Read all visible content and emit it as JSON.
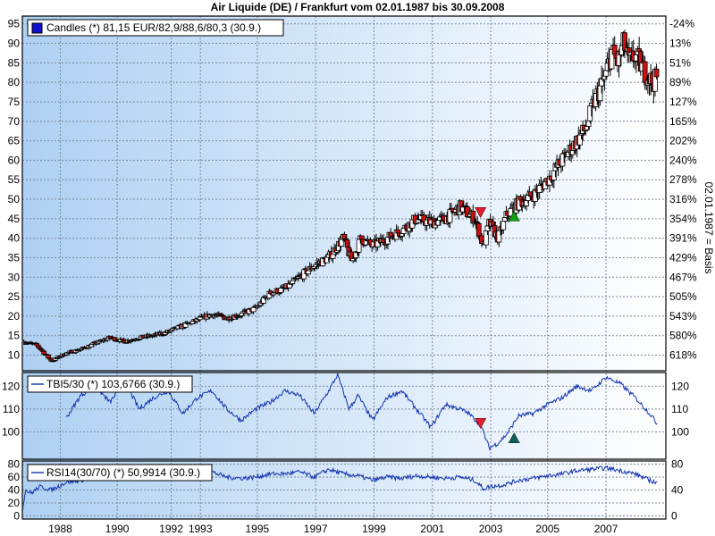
{
  "chart_data": {
    "title": "Air Liquide (DE) / Frankfurt vom 02.01.1987  bis 30.09.2008",
    "type": "candlestick",
    "x_ticks": [
      "1988",
      "1990",
      "1992",
      "1993",
      "1995",
      "1997",
      "1999",
      "2001",
      "2003",
      "2005",
      "2007"
    ],
    "colors": {
      "up": "#ffffff",
      "down": "#d01010",
      "line": "#1030b0",
      "buy": "#10a010",
      "sell": "#e02030"
    },
    "panels": [
      {
        "id": "price",
        "legend": "Candles (*) 81,15 EUR/82,9/88,6/80,3 (30.9.)",
        "ylim": [
          6,
          97
        ],
        "y_ticks_left": [
          10,
          15,
          20,
          25,
          30,
          35,
          40,
          45,
          50,
          55,
          60,
          65,
          70,
          75,
          80,
          85,
          90,
          95
        ],
        "y_ticks_right": [
          "618%",
          "580%",
          "543%",
          "505%",
          "467%",
          "429%",
          "391%",
          "354%",
          "316%",
          "278%",
          "240%",
          "202%",
          "165%",
          "127%",
          "89%",
          "51%",
          "13%",
          "-24%"
        ],
        "right_axis_label": "02.01.1987 = Basis",
        "anchors": [
          [
            1987.0,
            13.5
          ],
          [
            1987.5,
            12.5
          ],
          [
            1988.0,
            8.5
          ],
          [
            1988.5,
            10.5
          ],
          [
            1989.0,
            11.5
          ],
          [
            1989.5,
            13
          ],
          [
            1990.0,
            14.5
          ],
          [
            1990.5,
            13.5
          ],
          [
            1991.0,
            14.5
          ],
          [
            1991.5,
            15
          ],
          [
            1992.0,
            16
          ],
          [
            1992.5,
            17.5
          ],
          [
            1993.0,
            19
          ],
          [
            1993.5,
            20.5
          ],
          [
            1994.0,
            19.5
          ],
          [
            1994.5,
            20.5
          ],
          [
            1995.0,
            22
          ],
          [
            1995.5,
            26
          ],
          [
            1996.0,
            27
          ],
          [
            1996.5,
            30
          ],
          [
            1997.0,
            33
          ],
          [
            1997.5,
            35
          ],
          [
            1998.0,
            40
          ],
          [
            1998.3,
            34
          ],
          [
            1998.6,
            40
          ],
          [
            1999.0,
            38
          ],
          [
            1999.5,
            40
          ],
          [
            2000.0,
            42
          ],
          [
            2000.5,
            45
          ],
          [
            2001.0,
            44
          ],
          [
            2001.5,
            45
          ],
          [
            2002.0,
            48
          ],
          [
            2002.5,
            45
          ],
          [
            2002.8,
            38
          ],
          [
            2003.0,
            44
          ],
          [
            2003.3,
            40
          ],
          [
            2003.6,
            46
          ],
          [
            2004.0,
            49
          ],
          [
            2004.5,
            51
          ],
          [
            2005.0,
            55
          ],
          [
            2005.5,
            60
          ],
          [
            2006.0,
            65
          ],
          [
            2006.3,
            68
          ],
          [
            2006.6,
            75
          ],
          [
            2007.0,
            82
          ],
          [
            2007.2,
            88
          ],
          [
            2007.4,
            85
          ],
          [
            2007.6,
            90
          ],
          [
            2007.8,
            85
          ],
          [
            2008.0,
            87
          ],
          [
            2008.3,
            83
          ],
          [
            2008.6,
            80
          ],
          [
            2008.75,
            81.15
          ]
        ],
        "signals": [
          {
            "x": 2002.7,
            "y": 46.5,
            "kind": "sell"
          },
          {
            "x": 2003.85,
            "y": 45.8,
            "kind": "buy"
          }
        ]
      },
      {
        "id": "tbi",
        "legend": "TBI5/30 (*) 103,6766 (30.9.)",
        "ylim": [
          88,
          126
        ],
        "y_ticks_left": [
          100,
          110,
          120
        ],
        "y_ticks_right": [
          100,
          110,
          120
        ],
        "anchors": [
          [
            1988.5,
            106
          ],
          [
            1989.0,
            116
          ],
          [
            1989.5,
            120
          ],
          [
            1990.0,
            113
          ],
          [
            1990.3,
            118
          ],
          [
            1990.6,
            120
          ],
          [
            1991.0,
            110
          ],
          [
            1991.5,
            115
          ],
          [
            1992.0,
            118
          ],
          [
            1992.5,
            108
          ],
          [
            1993.0,
            115
          ],
          [
            1993.5,
            118
          ],
          [
            1994.0,
            110
          ],
          [
            1994.5,
            105
          ],
          [
            1995.0,
            110
          ],
          [
            1995.5,
            113
          ],
          [
            1996.0,
            118
          ],
          [
            1996.5,
            116
          ],
          [
            1997.0,
            108
          ],
          [
            1997.5,
            118
          ],
          [
            1997.8,
            125
          ],
          [
            1998.2,
            110
          ],
          [
            1998.5,
            116
          ],
          [
            1999.0,
            105
          ],
          [
            1999.5,
            115
          ],
          [
            2000.0,
            118
          ],
          [
            2000.5,
            110
          ],
          [
            2001.0,
            102
          ],
          [
            2001.5,
            112
          ],
          [
            2002.0,
            110
          ],
          [
            2002.3,
            108
          ],
          [
            2002.7,
            103
          ],
          [
            2003.0,
            93
          ],
          [
            2003.3,
            95
          ],
          [
            2003.6,
            99
          ],
          [
            2004.0,
            107
          ],
          [
            2004.5,
            108
          ],
          [
            2005.0,
            112
          ],
          [
            2005.5,
            115
          ],
          [
            2006.0,
            120
          ],
          [
            2006.5,
            118
          ],
          [
            2007.0,
            124
          ],
          [
            2007.5,
            121
          ],
          [
            2008.0,
            115
          ],
          [
            2008.5,
            108
          ],
          [
            2008.75,
            103.7
          ]
        ],
        "signals": [
          {
            "x": 2002.7,
            "y": 103.5,
            "kind": "sell"
          },
          {
            "x": 2003.85,
            "y": 97.5,
            "kind": "buy"
          }
        ]
      },
      {
        "id": "rsi",
        "legend": "RSI14(30/70) (*) 50,9914 (30.9.)",
        "ylim": [
          -5,
          85
        ],
        "y_ticks_left": [
          0,
          20,
          40,
          60,
          80
        ],
        "y_ticks_right": [
          0,
          40,
          80
        ],
        "anchors": [
          [
            1987.0,
            5
          ],
          [
            1987.1,
            40
          ],
          [
            1987.3,
            35
          ],
          [
            1987.6,
            45
          ],
          [
            1988.0,
            40
          ],
          [
            1988.5,
            52
          ],
          [
            1989.0,
            55
          ],
          [
            1989.5,
            60
          ],
          [
            1990.0,
            62
          ],
          [
            1990.5,
            58
          ],
          [
            1991.0,
            62
          ],
          [
            1991.5,
            65
          ],
          [
            1992.0,
            63
          ],
          [
            1992.5,
            62
          ],
          [
            1993.0,
            65
          ],
          [
            1993.5,
            68
          ],
          [
            1994.0,
            60
          ],
          [
            1994.5,
            58
          ],
          [
            1995.0,
            60
          ],
          [
            1995.5,
            65
          ],
          [
            1996.0,
            65
          ],
          [
            1996.5,
            68
          ],
          [
            1997.0,
            60
          ],
          [
            1997.5,
            72
          ],
          [
            1998.0,
            65
          ],
          [
            1998.5,
            62
          ],
          [
            1999.0,
            55
          ],
          [
            1999.5,
            60
          ],
          [
            2000.0,
            58
          ],
          [
            2000.5,
            62
          ],
          [
            2001.0,
            60
          ],
          [
            2001.5,
            58
          ],
          [
            2002.0,
            60
          ],
          [
            2002.5,
            55
          ],
          [
            2002.8,
            42
          ],
          [
            2003.0,
            45
          ],
          [
            2003.5,
            48
          ],
          [
            2004.0,
            55
          ],
          [
            2004.5,
            58
          ],
          [
            2005.0,
            62
          ],
          [
            2005.5,
            65
          ],
          [
            2006.0,
            70
          ],
          [
            2006.5,
            72
          ],
          [
            2007.0,
            74
          ],
          [
            2007.5,
            70
          ],
          [
            2008.0,
            65
          ],
          [
            2008.5,
            55
          ],
          [
            2008.75,
            51
          ]
        ]
      }
    ]
  }
}
